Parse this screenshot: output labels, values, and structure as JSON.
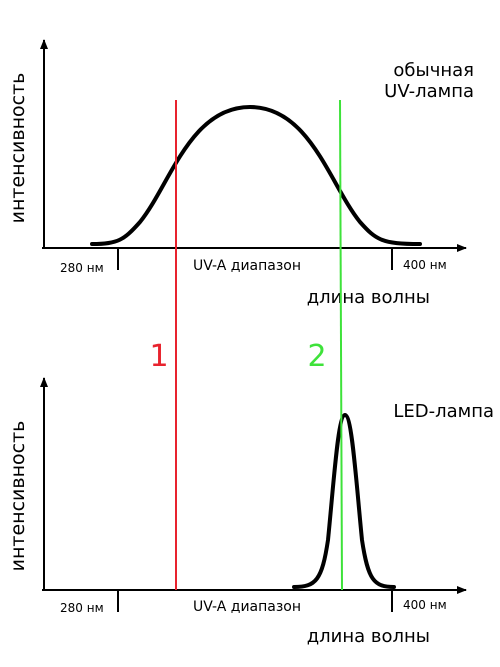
{
  "top_panel": {
    "y_axis_label": "интенсивность",
    "x_axis_label": "длина волны",
    "left_tick_label": "280 нм",
    "right_tick_label": "400 нм",
    "range_label": "UV-A диапазон",
    "curve_title_line1": "обычная",
    "curve_title_line2": "UV-лампа"
  },
  "bottom_panel": {
    "y_axis_label": "интенсивность",
    "x_axis_label": "длина волны",
    "left_tick_label": "280 нм",
    "right_tick_label": "400 нм",
    "range_label": "UV-A диапазон",
    "curve_title": "LED-лампа"
  },
  "markers": [
    {
      "label": "1",
      "color": "#e8232e"
    },
    {
      "label": "2",
      "color": "#3ee23a"
    }
  ],
  "colors": {
    "axis": "#000000",
    "curve": "#000000"
  }
}
